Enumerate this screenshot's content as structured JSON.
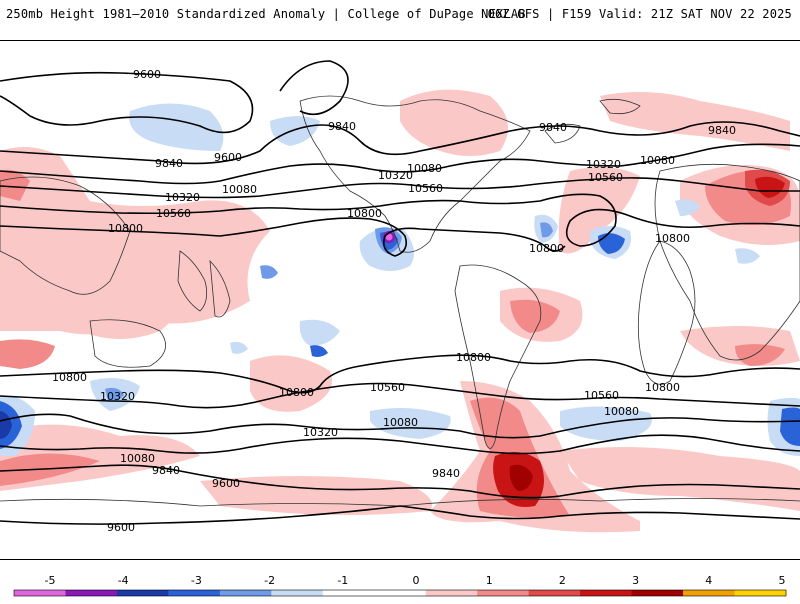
{
  "header": {
    "title": "250mb Height 1981–2010 Standardized Anomaly | College of DuPage NEXLAB",
    "run_info": "06Z GFS | F159 Valid: 21Z SAT NOV 22 2025"
  },
  "contour_labels": {
    "c9600a": "9600",
    "c9600b": "9600",
    "c9600c": "9600",
    "c9600d": "9600",
    "c9840a": "9840",
    "c9840b": "9840",
    "c9840c": "9840",
    "c9840d": "9840",
    "c9840e": "9840",
    "c9840f": "9840",
    "c10080a": "10080",
    "c10080b": "10080",
    "c10080c": "10080",
    "c10080d": "10080",
    "c10080e": "10080",
    "c10080f": "10080",
    "c10320a": "10320",
    "c10320b": "10320",
    "c10320c": "10320",
    "c10320d": "10320",
    "c10320e": "10320",
    "c10560a": "10560",
    "c10560b": "10560",
    "c10560c": "10560",
    "c10560d": "10560",
    "c10560e": "10560",
    "c10800a": "10800",
    "c10800b": "10800",
    "c10800c": "10800",
    "c10800d": "10800",
    "c10800e": "10800",
    "c10800f": "10800",
    "c10800g": "10800",
    "c10800h": "10800"
  },
  "colorbar": {
    "ticks": [
      "-5",
      "-4",
      "-3",
      "-2",
      "-1",
      "0",
      "1",
      "2",
      "3",
      "4",
      "5"
    ],
    "colors": [
      "#e066e0",
      "#8a1ab8",
      "#1a3aa8",
      "#2a62d8",
      "#6e9ae8",
      "#c8dcf6",
      "#ffffff",
      "#ffffff",
      "#fbc8c8",
      "#f28a8a",
      "#e04a4a",
      "#c81414",
      "#a00000",
      "#f0a000",
      "#ffd000"
    ]
  }
}
